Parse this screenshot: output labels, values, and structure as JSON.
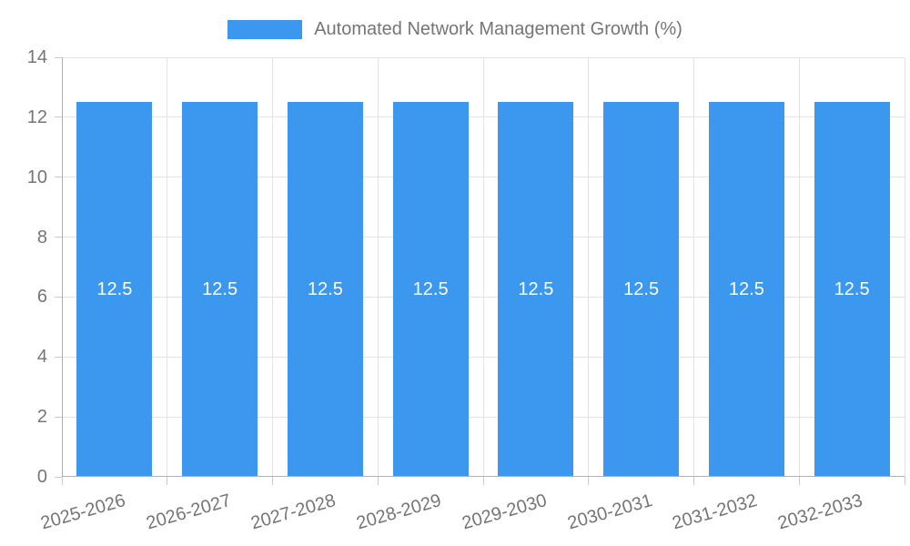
{
  "chart_data": {
    "type": "bar",
    "title": "",
    "legend": "Automated Network Management Growth (%)",
    "legend_position": "top",
    "categories": [
      "2025-2026",
      "2026-2027",
      "2027-2028",
      "2028-2029",
      "2029-2030",
      "2030-2031",
      "2031-2032",
      "2032-2033"
    ],
    "values": [
      12.5,
      12.5,
      12.5,
      12.5,
      12.5,
      12.5,
      12.5,
      12.5
    ],
    "bar_value_labels": [
      "12.5",
      "12.5",
      "12.5",
      "12.5",
      "12.5",
      "12.5",
      "12.5",
      "12.5"
    ],
    "xlabel": "",
    "ylabel": "",
    "ylim": [
      0,
      14
    ],
    "yticks": [
      0,
      2,
      4,
      6,
      8,
      10,
      12,
      14
    ],
    "grid": true,
    "x_tick_rotation_deg": -16,
    "colors": {
      "bar": "#3b98ee",
      "bar_value_label": "#ffffff",
      "axis_text": "#757575",
      "gridline": "#e3e3e3",
      "axis_line": "#b0b0b0",
      "tick": "#c9c9c9",
      "background": "#ffffff"
    }
  }
}
